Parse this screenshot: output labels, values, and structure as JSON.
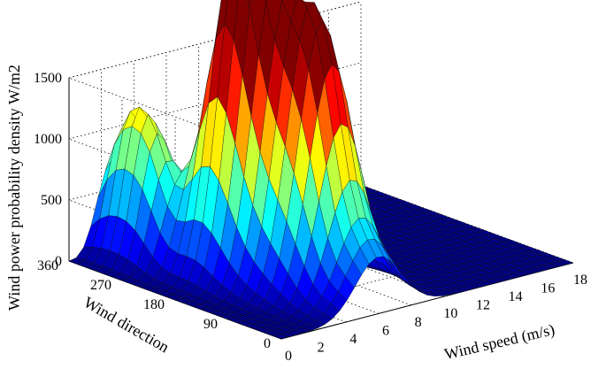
{
  "chart_data": {
    "type": "surface",
    "title": "",
    "zlabel": "Wind power probability density W/m2",
    "xlabel": "Wind speed (m/s)",
    "ylabel": "Wind direction",
    "x_ticks": [
      0,
      2,
      4,
      6,
      8,
      10,
      12,
      14,
      16,
      18
    ],
    "y_ticks": [
      0,
      90,
      180,
      270,
      360
    ],
    "z_ticks": [
      0,
      500,
      1000,
      1500
    ],
    "xlim": [
      0,
      18
    ],
    "ylim": [
      0,
      360
    ],
    "zlim": [
      0,
      1500
    ],
    "grid": "on",
    "colormap": "jet",
    "peaks": [
      {
        "wind_speed": 4.5,
        "wind_direction": 210,
        "value": 1850
      },
      {
        "wind_speed": 5.0,
        "wind_direction": 170,
        "value": 1830
      },
      {
        "wind_speed": 5.5,
        "wind_direction": 120,
        "value": 1400
      },
      {
        "wind_speed": 6.0,
        "wind_direction": 80,
        "value": 1450
      },
      {
        "wind_speed": 2.5,
        "wind_direction": 290,
        "value": 1000
      },
      {
        "wind_speed": 2.5,
        "wind_direction": 340,
        "value": 960
      },
      {
        "wind_speed": 6.0,
        "wind_direction": 10,
        "value": 450
      }
    ]
  }
}
